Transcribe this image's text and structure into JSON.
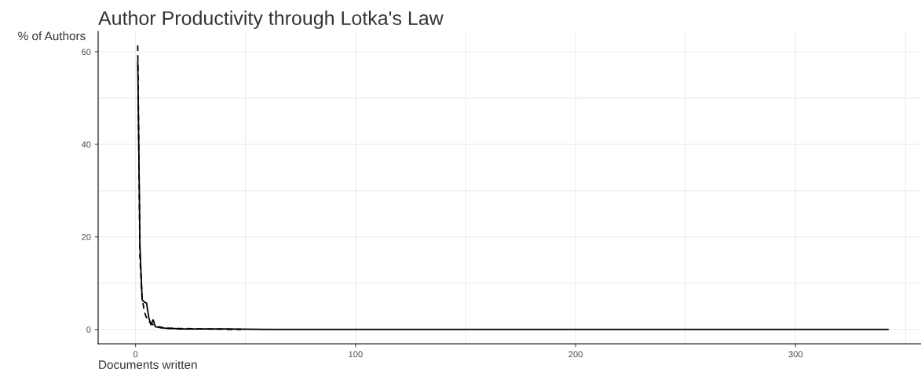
{
  "chart_data": {
    "type": "line",
    "title": "Author Productivity through Lotka's Law",
    "xlabel": "Documents written",
    "ylabel": "% of Authors",
    "xlim": [
      -17,
      357
    ],
    "ylim": [
      -3.1,
      64.4
    ],
    "xticks": [
      0,
      100,
      200,
      300
    ],
    "yticks": [
      0,
      20,
      40,
      60
    ],
    "grid": true,
    "marker": "none",
    "series": [
      {
        "color": "#000000",
        "line_style": "solid",
        "x": [
          1,
          2,
          3,
          4,
          5,
          6,
          7,
          8,
          9,
          10,
          11,
          12,
          13,
          15,
          18,
          20,
          25,
          30,
          40,
          60,
          100,
          200,
          342
        ],
        "values": [
          57.9,
          18,
          6.4,
          5.9,
          5.7,
          2.6,
          1.0,
          2.1,
          0.6,
          0.5,
          0.4,
          0.3,
          0.3,
          0.2,
          0.2,
          0.1,
          0.1,
          0.1,
          0.1,
          0,
          0,
          0,
          0
        ]
      },
      {
        "color": "#000000",
        "line_style": "dashed",
        "x": [
          1,
          2,
          3,
          4,
          5,
          6,
          8,
          10,
          15,
          20,
          30,
          48
        ],
        "values": [
          61.4,
          15.4,
          6.8,
          3.8,
          2.5,
          1.7,
          1.0,
          0.6,
          0.3,
          0.2,
          0.1,
          0
        ]
      }
    ]
  }
}
